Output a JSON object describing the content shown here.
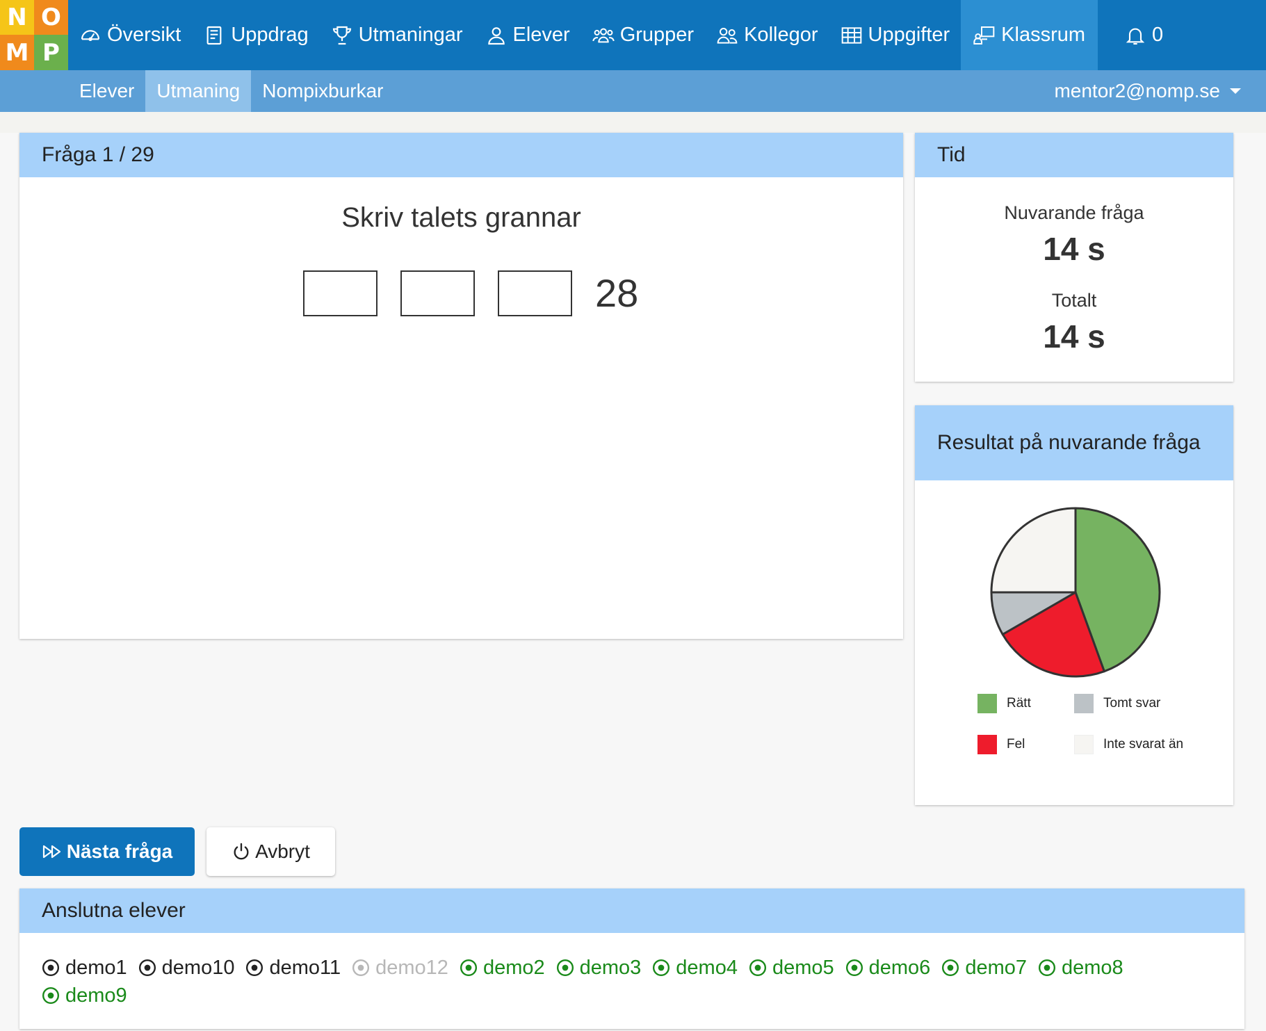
{
  "logo": {
    "letters": [
      "N",
      "O",
      "M",
      "P"
    ],
    "colors": [
      "#f5c518",
      "#f08a1c",
      "#f08a1c",
      "#6bb04c"
    ]
  },
  "nav": {
    "items": [
      {
        "label": "Översikt",
        "icon": "dashboard-icon"
      },
      {
        "label": "Uppdrag",
        "icon": "book-icon"
      },
      {
        "label": "Utmaningar",
        "icon": "trophy-icon"
      },
      {
        "label": "Elever",
        "icon": "person-icon"
      },
      {
        "label": "Grupper",
        "icon": "group-icon"
      },
      {
        "label": "Kollegor",
        "icon": "people-icon"
      },
      {
        "label": "Uppgifter",
        "icon": "grid-icon"
      },
      {
        "label": "Klassrum",
        "icon": "classroom-icon",
        "active": true
      }
    ],
    "notifications": {
      "icon": "bell-icon",
      "count": "0"
    }
  },
  "subnav": {
    "items": [
      {
        "label": "Elever"
      },
      {
        "label": "Utmaning",
        "active": true
      },
      {
        "label": "Nompixburkar"
      }
    ],
    "user": "mentor2@nomp.se"
  },
  "question": {
    "header": "Fråga 1 / 29",
    "prompt": "Skriv talets grannar",
    "answer_boxes": [
      "",
      "",
      ""
    ],
    "number": "28"
  },
  "time": {
    "header": "Tid",
    "current_label": "Nuvarande fråga",
    "current_value": "14 s",
    "total_label": "Totalt",
    "total_value": "14 s"
  },
  "results": {
    "header": "Resultat på nuvarande fråga",
    "chart_data": {
      "type": "pie",
      "labels": [
        "Rätt",
        "Fel",
        "Tomt svar",
        "Inte svarat än"
      ],
      "values": [
        8,
        4,
        1.5,
        4.5
      ],
      "colors": [
        "#76b361",
        "#ee1c2c",
        "#bcc2c6",
        "#f6f5f2"
      ]
    },
    "legend": [
      {
        "label": "Rätt",
        "color": "#76b361"
      },
      {
        "label": "Tomt svar",
        "color": "#bcc2c6"
      },
      {
        "label": "Fel",
        "color": "#ee1c2c"
      },
      {
        "label": "Inte svarat än",
        "color": "#f6f5f2"
      }
    ]
  },
  "buttons": {
    "next": "Nästa fråga",
    "abort": "Avbryt"
  },
  "students": {
    "header": "Anslutna elever",
    "list": [
      {
        "name": "demo1",
        "status": "connected"
      },
      {
        "name": "demo10",
        "status": "connected"
      },
      {
        "name": "demo11",
        "status": "connected"
      },
      {
        "name": "demo12",
        "status": "offline"
      },
      {
        "name": "demo2",
        "status": "answered"
      },
      {
        "name": "demo3",
        "status": "answered"
      },
      {
        "name": "demo4",
        "status": "answered"
      },
      {
        "name": "demo5",
        "status": "answered"
      },
      {
        "name": "demo6",
        "status": "answered"
      },
      {
        "name": "demo7",
        "status": "answered"
      },
      {
        "name": "demo8",
        "status": "answered"
      },
      {
        "name": "demo9",
        "status": "answered"
      }
    ]
  }
}
